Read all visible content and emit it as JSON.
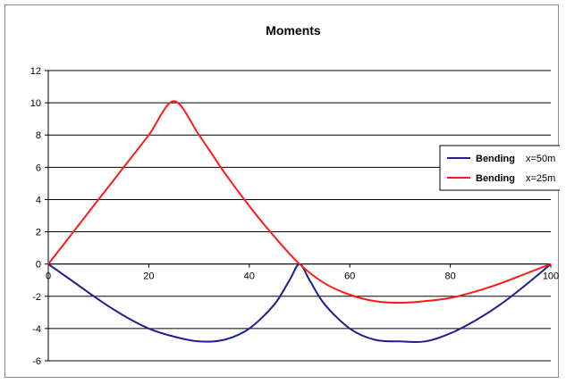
{
  "chart_data": {
    "type": "line",
    "title": "Moments",
    "xlabel": "",
    "ylabel": "",
    "xlim": [
      0,
      100
    ],
    "ylim": [
      -6,
      12
    ],
    "x_ticks": [
      0,
      20,
      40,
      60,
      80,
      100
    ],
    "y_ticks": [
      -6,
      -4,
      -2,
      0,
      2,
      4,
      6,
      8,
      10,
      12
    ],
    "grid": "horizontal",
    "legend_position": "right",
    "series": [
      {
        "name": "Bending",
        "suffix": "x=50m",
        "color": "#1f1f8f",
        "points": [
          [
            0,
            0
          ],
          [
            5,
            -1.1
          ],
          [
            10,
            -2.2
          ],
          [
            15,
            -3.2
          ],
          [
            20,
            -4.0
          ],
          [
            25,
            -4.5
          ],
          [
            30,
            -4.8
          ],
          [
            35,
            -4.7
          ],
          [
            40,
            -4.0
          ],
          [
            45,
            -2.5
          ],
          [
            48,
            -1.0
          ],
          [
            50,
            0
          ],
          [
            52,
            -1.0
          ],
          [
            55,
            -2.5
          ],
          [
            60,
            -4.0
          ],
          [
            65,
            -4.7
          ],
          [
            70,
            -4.8
          ],
          [
            75,
            -4.8
          ],
          [
            80,
            -4.3
          ],
          [
            85,
            -3.5
          ],
          [
            90,
            -2.5
          ],
          [
            95,
            -1.3
          ],
          [
            100,
            0
          ]
        ]
      },
      {
        "name": "Bending",
        "suffix": "x=25m",
        "color": "#ff1a1a",
        "points": [
          [
            0,
            0
          ],
          [
            5,
            2.0
          ],
          [
            10,
            4.0
          ],
          [
            15,
            6.0
          ],
          [
            20,
            8.0
          ],
          [
            25,
            10.1
          ],
          [
            30,
            8.0
          ],
          [
            35,
            5.7
          ],
          [
            40,
            3.6
          ],
          [
            45,
            1.7
          ],
          [
            50,
            0
          ],
          [
            55,
            -1.2
          ],
          [
            60,
            -1.9
          ],
          [
            65,
            -2.3
          ],
          [
            70,
            -2.4
          ],
          [
            75,
            -2.3
          ],
          [
            80,
            -2.1
          ],
          [
            85,
            -1.7
          ],
          [
            90,
            -1.2
          ],
          [
            95,
            -0.6
          ],
          [
            100,
            0
          ]
        ]
      }
    ]
  }
}
